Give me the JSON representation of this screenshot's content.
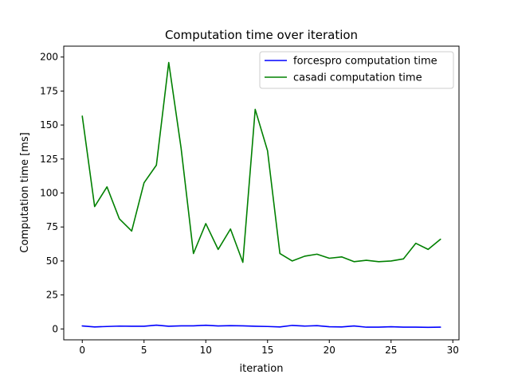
{
  "chart_data": {
    "type": "line",
    "title": "Computation time over iteration",
    "xlabel": "iteration",
    "ylabel": "Computation time [ms]",
    "xlim": [
      -1.5,
      30.5
    ],
    "ylim": [
      -8,
      208
    ],
    "xticks": [
      0,
      5,
      10,
      15,
      20,
      25,
      30
    ],
    "yticks": [
      0,
      25,
      50,
      75,
      100,
      125,
      150,
      175,
      200
    ],
    "grid": false,
    "legend_position": "top-right",
    "x": [
      0,
      1,
      2,
      3,
      4,
      5,
      6,
      7,
      8,
      9,
      10,
      11,
      12,
      13,
      14,
      15,
      16,
      17,
      18,
      19,
      20,
      21,
      22,
      23,
      24,
      25,
      26,
      27,
      28,
      29
    ],
    "series": [
      {
        "name": "forcespro computation time",
        "color": "#0000ff",
        "values": [
          2.2,
          1.5,
          1.8,
          2.1,
          2.0,
          2.0,
          2.8,
          2.0,
          2.3,
          2.3,
          2.7,
          2.2,
          2.4,
          2.3,
          2.0,
          1.8,
          1.5,
          2.6,
          2.1,
          2.4,
          1.6,
          1.5,
          2.2,
          1.3,
          1.3,
          1.6,
          1.3,
          1.3,
          1.2,
          1.3
        ]
      },
      {
        "name": "casadi computation time",
        "color": "#008000",
        "values": [
          156.5,
          90,
          104.5,
          81,
          72,
          107.5,
          120.5,
          196,
          133,
          55.5,
          77.5,
          58.5,
          73.5,
          49,
          161.5,
          131,
          55.5,
          50,
          53.5,
          55,
          52,
          53,
          49.5,
          50.5,
          49.5,
          50,
          51.5,
          63,
          58.5,
          66
        ]
      }
    ]
  }
}
